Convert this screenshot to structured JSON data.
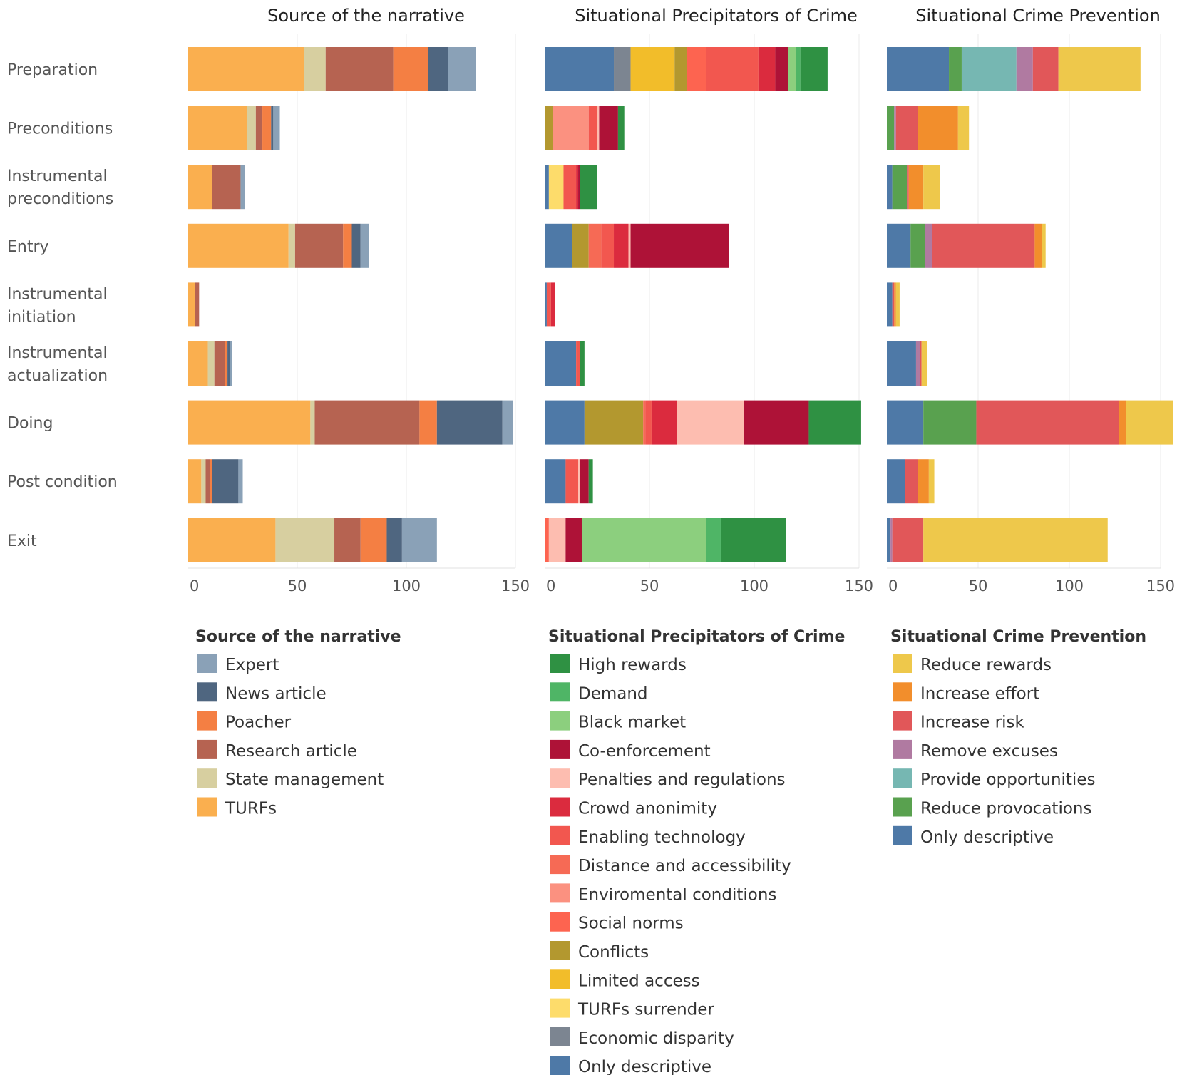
{
  "chart_data": {
    "type": "bar",
    "orientation": "horizontal",
    "stacked": true,
    "categories": [
      "Preparation",
      "Preconditions",
      "Instrumental preconditions",
      "Entry",
      "Instrumental initiation",
      "Instrumental actualization",
      "Doing",
      "Post condition",
      "Exit"
    ],
    "category_lines": [
      [
        "Preparation"
      ],
      [
        "Preconditions"
      ],
      [
        "Instrumental",
        "preconditions"
      ],
      [
        "Entry"
      ],
      [
        "Instrumental",
        "initiation"
      ],
      [
        "Instrumental",
        "actualization"
      ],
      [
        "Doing"
      ],
      [
        "Post condition"
      ],
      [
        "Exit"
      ]
    ],
    "panels": [
      {
        "title": "Source of the narrative",
        "legend_title": "Source of the narrative",
        "xlim": [
          0,
          150
        ],
        "xticks": [
          0,
          50,
          100,
          150
        ],
        "stack_order": [
          "TURFs",
          "State management",
          "Research article",
          "Poacher",
          "News article",
          "Expert"
        ],
        "series": [
          {
            "name": "Expert",
            "color": "#8aa1b7",
            "values": [
              13,
              3,
              2,
              4,
              0,
              1,
              5,
              2,
              16
            ]
          },
          {
            "name": "News article",
            "color": "#4f6680",
            "values": [
              9,
              1,
              0,
              4,
              0,
              1,
              30,
              12,
              7
            ]
          },
          {
            "name": "Poacher",
            "color": "#f47f43",
            "values": [
              16,
              4,
              0,
              4,
              0,
              1,
              8,
              1,
              12
            ]
          },
          {
            "name": "Research article",
            "color": "#b66351",
            "values": [
              31,
              3,
              13,
              22,
              2,
              5,
              48,
              2,
              12
            ]
          },
          {
            "name": "State management",
            "color": "#d7cfa0",
            "values": [
              10,
              4,
              0,
              3,
              0,
              3,
              2,
              2,
              27
            ]
          },
          {
            "name": "TURFs",
            "color": "#faaf4f",
            "values": [
              53,
              27,
              11,
              46,
              3,
              9,
              56,
              6,
              40
            ]
          }
        ]
      },
      {
        "title": "Situational Precipitators of Crime",
        "legend_title": "Situational Precipitators of Crime",
        "xlim": [
          0,
          150
        ],
        "xticks": [
          0,
          50,
          100,
          150
        ],
        "stack_order": [
          "Only descriptive",
          "Economic disparity",
          "TURFs surrender",
          "Limited access",
          "Conflicts",
          "Social norms",
          "Enviromental conditions",
          "Distance and accessibility",
          "Enabling technology",
          "Crowd anonimity",
          "Penalties and regulations",
          "Co-enforcement",
          "Black market",
          "Demand",
          "High rewards"
        ],
        "series": [
          {
            "name": "High rewards",
            "color": "#2f9143",
            "values": [
              13,
              3,
              8,
              0,
              0,
              2,
              25,
              2,
              31
            ]
          },
          {
            "name": "Demand",
            "color": "#4fb566",
            "values": [
              2,
              0,
              0,
              0,
              0,
              0,
              0,
              0,
              7
            ]
          },
          {
            "name": "Black market",
            "color": "#8ccf7e",
            "values": [
              4,
              0,
              0,
              0,
              0,
              0,
              0,
              0,
              59
            ]
          },
          {
            "name": "Co-enforcement",
            "color": "#ae1237",
            "values": [
              6,
              9,
              1,
              47,
              0,
              0,
              31,
              4,
              8
            ]
          },
          {
            "name": "Penalties and regulations",
            "color": "#fdbdb0",
            "values": [
              0,
              1,
              0,
              1,
              0,
              0,
              32,
              1,
              8
            ]
          },
          {
            "name": "Crowd anonimity",
            "color": "#db2b3e",
            "values": [
              8,
              0,
              1,
              7,
              2,
              0,
              12,
              0,
              0
            ]
          },
          {
            "name": "Enabling technology",
            "color": "#f2574f",
            "values": [
              25,
              4,
              6,
              6,
              2,
              2,
              3,
              6,
              0
            ]
          },
          {
            "name": "Distance and accessibility",
            "color": "#f66a55",
            "values": [
              0,
              0,
              0,
              6,
              0,
              0,
              1,
              0,
              0
            ]
          },
          {
            "name": "Enviromental conditions",
            "color": "#fb9180",
            "values": [
              0,
              17,
              0,
              0,
              0,
              0,
              0,
              0,
              0
            ]
          },
          {
            "name": "Social norms",
            "color": "#fd6450",
            "values": [
              9,
              0,
              0,
              0,
              0,
              0,
              0,
              0,
              2
            ]
          },
          {
            "name": "Conflicts",
            "color": "#b3982f",
            "values": [
              6,
              4,
              0,
              8,
              0,
              0,
              28,
              0,
              0
            ]
          },
          {
            "name": "Limited access",
            "color": "#f2bd2a",
            "values": [
              21,
              0,
              0,
              0,
              0,
              0,
              0,
              0,
              0
            ]
          },
          {
            "name": "TURFs surrender",
            "color": "#fddc6b",
            "values": [
              0,
              0,
              7,
              0,
              0,
              0,
              0,
              0,
              0
            ]
          },
          {
            "name": "Economic disparity",
            "color": "#7c8591",
            "values": [
              8,
              0,
              0,
              0,
              0,
              0,
              0,
              0,
              0
            ]
          },
          {
            "name": "Only descriptive",
            "color": "#4e79a7",
            "values": [
              33,
              0,
              2,
              13,
              1,
              15,
              19,
              10,
              0
            ]
          }
        ]
      },
      {
        "title": "Situational Crime Prevention",
        "legend_title": "Situational Crime Prevention",
        "xlim": [
          0,
          150
        ],
        "xticks": [
          0,
          50,
          100,
          150
        ],
        "stack_order": [
          "Only descriptive",
          "Reduce provocations",
          "Provide opportunities",
          "Remove excuses",
          "Increase risk",
          "Increase effort",
          "Reduce rewards"
        ],
        "series": [
          {
            "name": "Reduce rewards",
            "color": "#eec84b",
            "values": [
              45,
              6,
              9,
              2,
              2,
              3,
              26,
              3,
              101
            ]
          },
          {
            "name": "Increase effort",
            "color": "#f28e2c",
            "values": [
              0,
              22,
              8,
              4,
              1,
              0,
              4,
              6,
              0
            ]
          },
          {
            "name": "Increase risk",
            "color": "#e15759",
            "values": [
              14,
              12,
              1,
              56,
              1,
              1,
              78,
              7,
              17
            ]
          },
          {
            "name": "Remove excuses",
            "color": "#b07aa1",
            "values": [
              9,
              1,
              0,
              4,
              0,
              2,
              0,
              0,
              1
            ]
          },
          {
            "name": "Provide opportunities",
            "color": "#76b7b2",
            "values": [
              30,
              0,
              0,
              0,
              0,
              0,
              0,
              0,
              0
            ]
          },
          {
            "name": "Reduce provocations",
            "color": "#59a14f",
            "values": [
              7,
              4,
              8,
              8,
              0,
              0,
              29,
              0,
              0
            ]
          },
          {
            "name": "Only descriptive",
            "color": "#4e79a7",
            "values": [
              34,
              0,
              3,
              13,
              3,
              16,
              20,
              10,
              2
            ]
          }
        ]
      }
    ]
  }
}
